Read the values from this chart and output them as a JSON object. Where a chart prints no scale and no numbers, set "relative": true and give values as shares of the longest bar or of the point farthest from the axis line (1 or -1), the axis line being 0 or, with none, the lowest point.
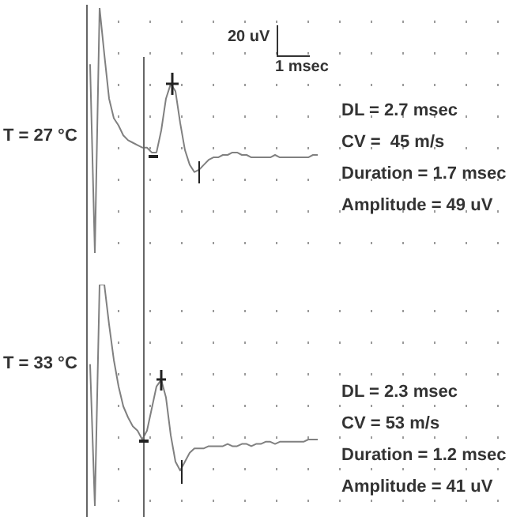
{
  "chart_data": [
    {
      "type": "line",
      "relative": true,
      "grid": true,
      "color": "#808080",
      "categories": [
        null,
        null,
        null,
        null,
        null,
        null,
        null,
        null,
        null,
        null,
        null,
        null,
        null,
        null,
        null,
        null,
        null,
        null,
        null,
        null,
        null,
        null,
        null,
        null,
        null,
        null,
        null,
        null,
        null,
        null,
        null,
        null,
        null,
        null,
        null,
        null,
        null,
        null,
        null,
        null,
        null,
        null,
        null,
        null,
        null,
        null,
        null,
        null,
        null
      ],
      "values": [
        0.77,
        0,
        1,
        0.81,
        0.63,
        0.55,
        0.52,
        0.48,
        0.46,
        0.45,
        0.44,
        0.43,
        0.43,
        0.41,
        0.41,
        0.5,
        0.63,
        0.69,
        0.66,
        0.53,
        0.42,
        0.36,
        0.33,
        0.34,
        0.36,
        0.38,
        0.39,
        0.39,
        0.4,
        0.4,
        0.41,
        0.41,
        0.4,
        0.4,
        0.39,
        0.39,
        0.39,
        0.39,
        0.39,
        0.4,
        0.39,
        0.39,
        0.39,
        0.39,
        0.39,
        0.39,
        0.39,
        0.4,
        0.4
      ],
      "annotations": [
        "20 uV",
        "1 msec",
        "T = 27 °C",
        "DL = 2.7 msec",
        "CV =  45 m/s",
        "Duration = 1.7 msec",
        "Amplitude = 49 uV"
      ]
    },
    {
      "type": "line",
      "relative": true,
      "grid": true,
      "color": "#808080",
      "categories": [
        null,
        null,
        null,
        null,
        null,
        null,
        null,
        null,
        null,
        null,
        null,
        null,
        null,
        null,
        null,
        null,
        null,
        null,
        null,
        null,
        null,
        null,
        null,
        null,
        null,
        null,
        null,
        null,
        null,
        null,
        null,
        null,
        null,
        null,
        null,
        null,
        null,
        null,
        null,
        null,
        null,
        null,
        null,
        null,
        null,
        null,
        null,
        null,
        null
      ],
      "values": [
        0.64,
        0,
        1,
        1,
        0.82,
        0.66,
        0.54,
        0.45,
        0.4,
        0.36,
        0.34,
        0.3,
        0.34,
        0.44,
        0.54,
        0.57,
        0.49,
        0.32,
        0.2,
        0.16,
        0.2,
        0.24,
        0.26,
        0.26,
        0.26,
        0.27,
        0.27,
        0.27,
        0.27,
        0.28,
        0.27,
        0.27,
        0.28,
        0.28,
        0.27,
        0.28,
        0.28,
        0.29,
        0.29,
        0.28,
        0.29,
        0.29,
        0.29,
        0.29,
        0.29,
        0.29,
        0.3,
        0.3,
        0.3
      ],
      "annotations": [
        "T = 33 °C",
        "DL = 2.3 msec",
        "CV = 53 m/s",
        "Duration = 1.2 msec",
        "Amplitude = 41 uV"
      ]
    }
  ]
}
